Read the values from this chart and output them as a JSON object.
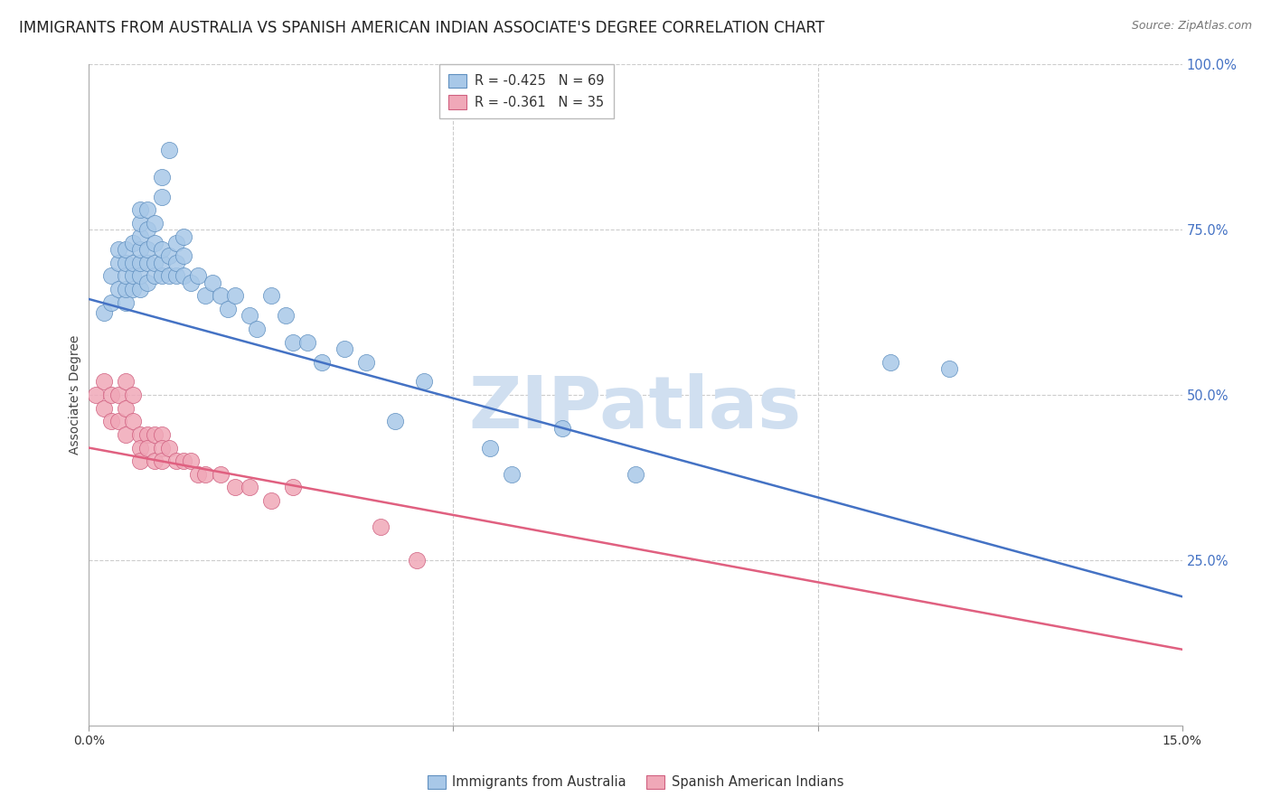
{
  "title": "IMMIGRANTS FROM AUSTRALIA VS SPANISH AMERICAN INDIAN ASSOCIATE'S DEGREE CORRELATION CHART",
  "source": "Source: ZipAtlas.com",
  "ylabel": "Associate's Degree",
  "right_yticks": [
    0.0,
    0.25,
    0.5,
    0.75,
    1.0
  ],
  "right_yticklabels": [
    "",
    "25.0%",
    "50.0%",
    "75.0%",
    "100.0%"
  ],
  "xmin": 0.0,
  "xmax": 0.15,
  "ymin": 0.0,
  "ymax": 1.0,
  "blue_R": "-0.425",
  "blue_N": "69",
  "pink_R": "-0.361",
  "pink_N": "35",
  "blue_label": "Immigrants from Australia",
  "pink_label": "Spanish American Indians",
  "blue_color": "#a8c8e8",
  "pink_color": "#f0a8b8",
  "blue_edge_color": "#6090c0",
  "pink_edge_color": "#d06080",
  "blue_line_color": "#4472c4",
  "pink_line_color": "#e06080",
  "watermark": "ZIPatlas",
  "watermark_color": "#d0dff0",
  "title_fontsize": 12,
  "source_fontsize": 9,
  "legend_fontsize": 10.5,
  "axis_label_fontsize": 10,
  "blue_trend_y0": 0.645,
  "blue_trend_y1": 0.195,
  "pink_trend_y0": 0.42,
  "pink_trend_y1": 0.115,
  "blue_x": [
    0.002,
    0.003,
    0.003,
    0.004,
    0.004,
    0.004,
    0.005,
    0.005,
    0.005,
    0.005,
    0.005,
    0.006,
    0.006,
    0.006,
    0.006,
    0.007,
    0.007,
    0.007,
    0.007,
    0.007,
    0.007,
    0.007,
    0.008,
    0.008,
    0.008,
    0.008,
    0.008,
    0.009,
    0.009,
    0.009,
    0.009,
    0.01,
    0.01,
    0.01,
    0.01,
    0.01,
    0.011,
    0.011,
    0.011,
    0.012,
    0.012,
    0.012,
    0.013,
    0.013,
    0.013,
    0.014,
    0.015,
    0.016,
    0.017,
    0.018,
    0.019,
    0.02,
    0.022,
    0.023,
    0.025,
    0.027,
    0.028,
    0.03,
    0.032,
    0.035,
    0.038,
    0.042,
    0.046,
    0.055,
    0.058,
    0.065,
    0.075,
    0.11,
    0.118
  ],
  "blue_y": [
    0.625,
    0.64,
    0.68,
    0.66,
    0.7,
    0.72,
    0.64,
    0.66,
    0.68,
    0.7,
    0.72,
    0.66,
    0.68,
    0.7,
    0.73,
    0.66,
    0.68,
    0.7,
    0.72,
    0.74,
    0.76,
    0.78,
    0.67,
    0.7,
    0.72,
    0.75,
    0.78,
    0.68,
    0.7,
    0.73,
    0.76,
    0.68,
    0.7,
    0.72,
    0.8,
    0.83,
    0.68,
    0.71,
    0.87,
    0.68,
    0.7,
    0.73,
    0.68,
    0.71,
    0.74,
    0.67,
    0.68,
    0.65,
    0.67,
    0.65,
    0.63,
    0.65,
    0.62,
    0.6,
    0.65,
    0.62,
    0.58,
    0.58,
    0.55,
    0.57,
    0.55,
    0.46,
    0.52,
    0.42,
    0.38,
    0.45,
    0.38,
    0.55,
    0.54
  ],
  "pink_x": [
    0.001,
    0.002,
    0.002,
    0.003,
    0.003,
    0.004,
    0.004,
    0.005,
    0.005,
    0.005,
    0.006,
    0.006,
    0.007,
    0.007,
    0.007,
    0.008,
    0.008,
    0.009,
    0.009,
    0.01,
    0.01,
    0.01,
    0.011,
    0.012,
    0.013,
    0.014,
    0.015,
    0.016,
    0.018,
    0.02,
    0.022,
    0.025,
    0.028,
    0.04,
    0.045
  ],
  "pink_y": [
    0.5,
    0.52,
    0.48,
    0.5,
    0.46,
    0.5,
    0.46,
    0.48,
    0.44,
    0.52,
    0.5,
    0.46,
    0.44,
    0.42,
    0.4,
    0.44,
    0.42,
    0.44,
    0.4,
    0.44,
    0.42,
    0.4,
    0.42,
    0.4,
    0.4,
    0.4,
    0.38,
    0.38,
    0.38,
    0.36,
    0.36,
    0.34,
    0.36,
    0.3,
    0.25
  ]
}
